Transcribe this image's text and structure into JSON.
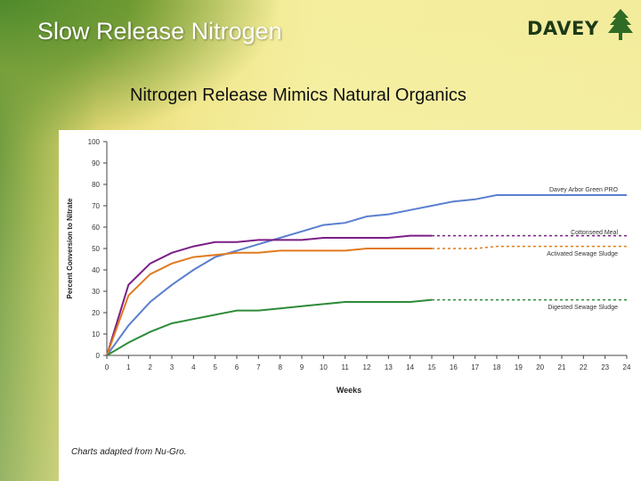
{
  "slide": {
    "title": "Slow Release Nitrogen",
    "subtitle": "Nitrogen Release Mimics Natural Organics",
    "logo_text": "DAVEY",
    "credit": "Charts adapted from Nu-Gro."
  },
  "chart_data": {
    "type": "line",
    "title": "",
    "xlabel": "Weeks",
    "ylabel": "Percent Conversion to Nitrate",
    "xlim": [
      0,
      24
    ],
    "ylim": [
      0,
      100
    ],
    "x_ticks": [
      0,
      1,
      2,
      3,
      4,
      5,
      6,
      7,
      8,
      9,
      10,
      11,
      12,
      13,
      14,
      15,
      16,
      17,
      18,
      19,
      20,
      21,
      22,
      23,
      24
    ],
    "y_ticks": [
      0,
      10,
      20,
      30,
      40,
      50,
      60,
      70,
      80,
      90,
      100
    ],
    "grid": false,
    "legend": "labels at right end of each line",
    "series": [
      {
        "name": "Davey Arbor Green PRO",
        "color": "#5b7fcf",
        "x": [
          0,
          1,
          2,
          3,
          4,
          5,
          6,
          7,
          8,
          9,
          10,
          11,
          12,
          13,
          14,
          15,
          16,
          17,
          18,
          19,
          20,
          21,
          22,
          23,
          24
        ],
        "y": [
          0,
          14,
          25,
          33,
          40,
          46,
          49,
          52,
          55,
          58,
          61,
          62,
          65,
          66,
          68,
          70,
          72,
          73,
          75,
          75,
          75,
          75,
          75,
          75,
          75
        ],
        "dashed_from_x": null
      },
      {
        "name": "Cottonseed Meal",
        "color": "#7a1f86",
        "x": [
          0,
          1,
          2,
          3,
          4,
          5,
          6,
          7,
          8,
          9,
          10,
          11,
          12,
          13,
          14,
          15,
          16,
          17,
          18,
          19,
          20,
          21,
          22,
          23,
          24
        ],
        "y": [
          0,
          33,
          43,
          48,
          51,
          53,
          53,
          54,
          54,
          54,
          55,
          55,
          55,
          55,
          56,
          56,
          56,
          56,
          56,
          56,
          56,
          56,
          56,
          56,
          56
        ],
        "dashed_from_x": 15
      },
      {
        "name": "Activated Sewage Sludge",
        "color": "#e07a1f",
        "x": [
          0,
          1,
          2,
          3,
          4,
          5,
          6,
          7,
          8,
          9,
          10,
          11,
          12,
          13,
          14,
          15,
          16,
          17,
          18,
          19,
          20,
          21,
          22,
          23,
          24
        ],
        "y": [
          0,
          28,
          38,
          43,
          46,
          47,
          48,
          48,
          49,
          49,
          49,
          49,
          50,
          50,
          50,
          50,
          50,
          50,
          51,
          51,
          51,
          51,
          51,
          51,
          51
        ],
        "dashed_from_x": 15
      },
      {
        "name": "Digested Sewage Sludge",
        "color": "#2e8b3a",
        "x": [
          0,
          1,
          2,
          3,
          4,
          5,
          6,
          7,
          8,
          9,
          10,
          11,
          12,
          13,
          14,
          15,
          16,
          17,
          18,
          19,
          20,
          21,
          22,
          23,
          24
        ],
        "y": [
          0,
          6,
          11,
          15,
          17,
          19,
          21,
          21,
          22,
          23,
          24,
          25,
          25,
          25,
          25,
          26,
          26,
          26,
          26,
          26,
          26,
          26,
          26,
          26,
          26
        ],
        "dashed_from_x": 15
      }
    ],
    "series_label_y": [
      78,
      58,
      48,
      23
    ]
  }
}
